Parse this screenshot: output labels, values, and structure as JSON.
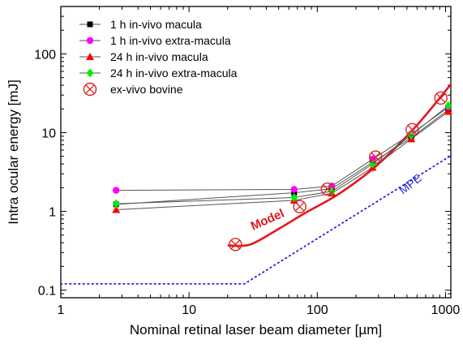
{
  "chart_data": {
    "type": "scatter",
    "xscale": "log",
    "yscale": "log",
    "xlim": [
      1,
      1100
    ],
    "ylim": [
      0.08,
      400
    ],
    "xlabel": "Nominal retinal laser beam diameter [µm]",
    "ylabel": "Intra ocular energy [mJ]",
    "xticks": [
      1,
      10,
      100,
      1000
    ],
    "xtick_labels": [
      "1",
      "10",
      "100",
      "1000"
    ],
    "yticks": [
      0.1,
      1,
      10,
      100
    ],
    "ytick_labels": [
      "0.1",
      "1",
      "10",
      "100"
    ],
    "legend_position": "top-left",
    "series": [
      {
        "name": "1 h in-vivo macula",
        "marker": "square",
        "color": "#000000",
        "connected": true,
        "x": [
          2.7,
          66,
          130,
          270,
          540,
          1050
        ],
        "y": [
          1.23,
          1.72,
          1.95,
          4.2,
          8.6,
          19.5
        ]
      },
      {
        "name": "1 h in-vivo extra-macula",
        "marker": "circle",
        "color": "#ff00ff",
        "connected": true,
        "x": [
          2.7,
          66,
          130,
          270,
          540,
          1050
        ],
        "y": [
          1.85,
          1.9,
          2.1,
          4.6,
          9.6,
          21.0
        ]
      },
      {
        "name": "24 h in-vivo macula",
        "marker": "triangle",
        "color": "#ff0000",
        "connected": true,
        "x": [
          2.7,
          66,
          130,
          270,
          540,
          1050
        ],
        "y": [
          1.05,
          1.38,
          1.7,
          3.6,
          8.3,
          18.5
        ]
      },
      {
        "name": "24 h in-vivo extra-macula",
        "marker": "diamond",
        "color": "#00ee00",
        "connected": true,
        "x": [
          2.7,
          66,
          130,
          270,
          540,
          1050
        ],
        "y": [
          1.25,
          1.5,
          1.8,
          4.0,
          9.3,
          22.0
        ]
      },
      {
        "name": "ex-vivo bovine",
        "marker": "circle-x",
        "color": "#dd2222",
        "connected": false,
        "x": [
          23,
          73,
          120,
          285,
          550,
          920
        ],
        "y": [
          0.38,
          1.15,
          1.92,
          4.9,
          10.9,
          27.5
        ]
      }
    ],
    "curves": [
      {
        "label": "Model",
        "color": "#e8141c",
        "style": "solid",
        "x": [
          20,
          30,
          50,
          80,
          150,
          300,
          600,
          1100
        ],
        "y": [
          0.37,
          0.38,
          0.6,
          0.95,
          1.7,
          4.0,
          12.5,
          41
        ]
      },
      {
        "label": "MPE",
        "color": "#2222dd",
        "style": "dotted",
        "x": [
          1,
          27,
          1100
        ],
        "y": [
          0.12,
          0.12,
          5.1
        ]
      }
    ]
  }
}
